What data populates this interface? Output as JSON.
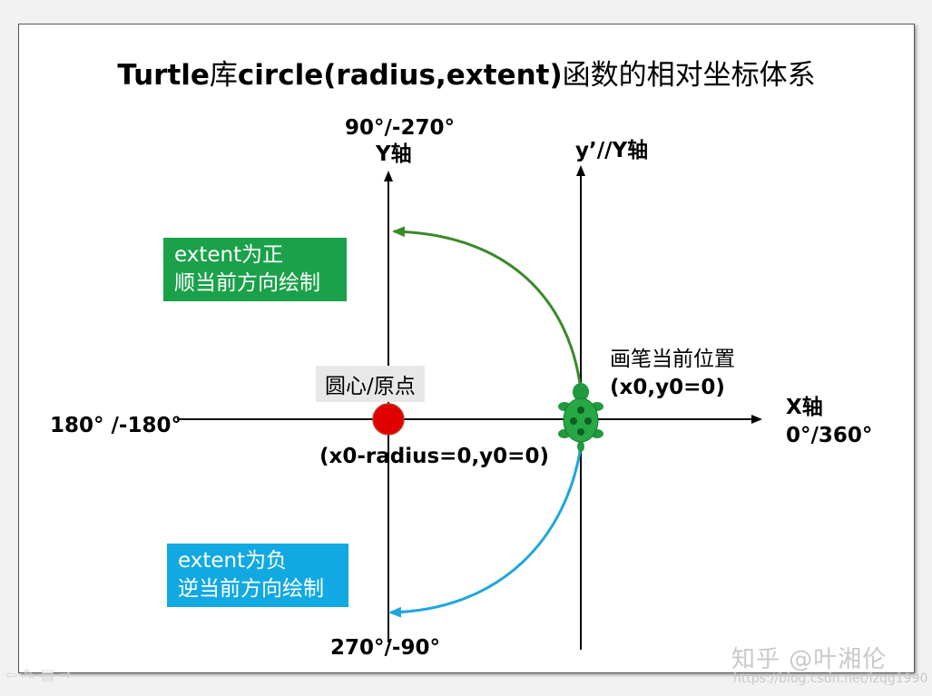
{
  "title_latin": "Turtle",
  "title_cn1": "库",
  "title_latin2": "circle(radius,extent)",
  "title_cn2": "函数的相对坐标体系",
  "y_axis_top_angle": "90°/-270°",
  "y_axis_name": "Y轴",
  "y_prime_name": "y’//Y轴",
  "x_axis_name": "X轴",
  "x_axis_right_angle": "0°/360°",
  "x_axis_left_angle": "180°  /-180°",
  "y_axis_bottom_angle": "270°/-90°",
  "positive_box": {
    "line1": "extent为正",
    "line2": "顺当前方向绘制"
  },
  "negative_box": {
    "line1": "extent为负",
    "line2": "逆当前方向绘制"
  },
  "origin_label": "圆心/原点",
  "origin_coords": "(x0-radius=0,y0=0)",
  "pen_label": "画笔当前位置",
  "pen_coords": "(x0,y0=0)",
  "watermark": "知乎 @叶湘伦",
  "watermark_url": "https://blog.csdn.net/lzqg1990",
  "colors": {
    "positive_arc": "#3a8a2a",
    "negative_arc": "#1fa6dc",
    "origin_dot": "#e00000",
    "turtle": "#1f9a3c"
  }
}
